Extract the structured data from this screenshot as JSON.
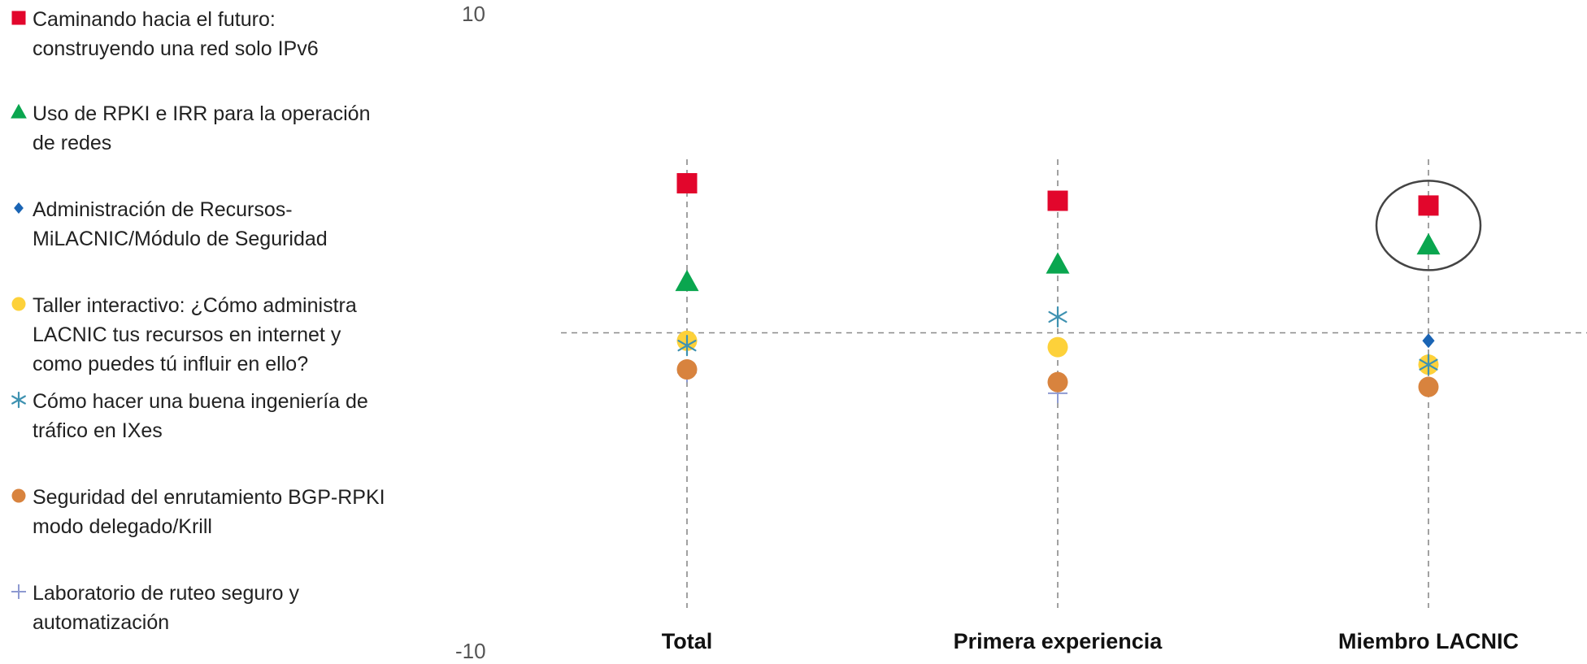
{
  "chart_data": {
    "type": "scatter",
    "categories": [
      "Total",
      "Primera experiencia",
      "Miembro LACNIC"
    ],
    "ylim": [
      -10,
      10
    ],
    "yticks": [
      "10",
      "-10"
    ],
    "reference_line_y": 0,
    "grid": false,
    "legend_position": "left",
    "highlight": {
      "category": "Miembro LACNIC",
      "series": [
        "Caminando hacia el futuro: construyendo una red solo IPv6",
        "Uso de RPKI e IRR para la operación de redes"
      ]
    },
    "series": [
      {
        "name": "Caminando hacia el futuro: construyendo una red solo IPv6",
        "marker": "square",
        "color": "#e2062c",
        "values": [
          4.7,
          4.15,
          4.0
        ]
      },
      {
        "name": "Uso de RPKI e IRR para la operación de redes",
        "marker": "triangle",
        "color": "#0aa64f",
        "values": [
          1.6,
          2.15,
          2.75
        ]
      },
      {
        "name": "Administración de Recursos- MiLACNIC/Módulo de Seguridad",
        "marker": "diamond",
        "color": "#1a64b4",
        "values": [
          null,
          null,
          -0.25
        ]
      },
      {
        "name": "Taller interactivo: ¿Cómo administra LACNIC tus recursos en internet y como puedes tú influir en ello?",
        "marker": "circle",
        "color": "#fdd13a",
        "values": [
          -0.25,
          -0.45,
          -1.0
        ]
      },
      {
        "name": "Cómo hacer una buena ingeniería de tráfico en IXes",
        "marker": "asterisk",
        "color": "#3f92b1",
        "values": [
          -0.4,
          0.5,
          -1.0
        ]
      },
      {
        "name": "Seguridad del enrutamiento BGP-RPKI modo delegado/Krill",
        "marker": "circle",
        "color": "#d8833e",
        "values": [
          -1.15,
          -1.55,
          -1.7
        ]
      },
      {
        "name": "Laboratorio de ruteo seguro y automatización",
        "marker": "plus",
        "color": "#8e9ad1",
        "values": [
          -1.25,
          -1.9,
          -1.0
        ]
      }
    ]
  }
}
